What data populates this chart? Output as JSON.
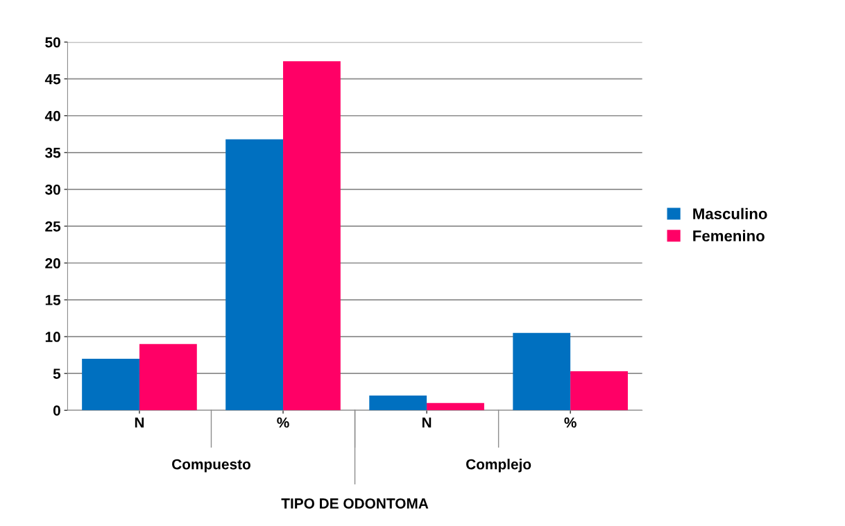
{
  "chart_data": {
    "type": "bar",
    "xlabel": "TIPO DE ODONTOMA",
    "categories": [
      "N",
      "%",
      "N",
      "%"
    ],
    "annotations": [
      "Compuesto",
      "Complejo"
    ],
    "series": [
      {
        "name": "Masculino",
        "color": "#0070c0",
        "values": [
          7,
          36.8,
          2,
          10.5
        ]
      },
      {
        "name": "Femenino",
        "color": "#ff0066",
        "values": [
          9,
          47.4,
          1,
          5.3
        ]
      }
    ],
    "ylim": [
      0,
      50
    ],
    "yticks": [
      0,
      5,
      10,
      15,
      20,
      25,
      30,
      35,
      40,
      45,
      50
    ],
    "grid": "y",
    "legend": "right"
  }
}
